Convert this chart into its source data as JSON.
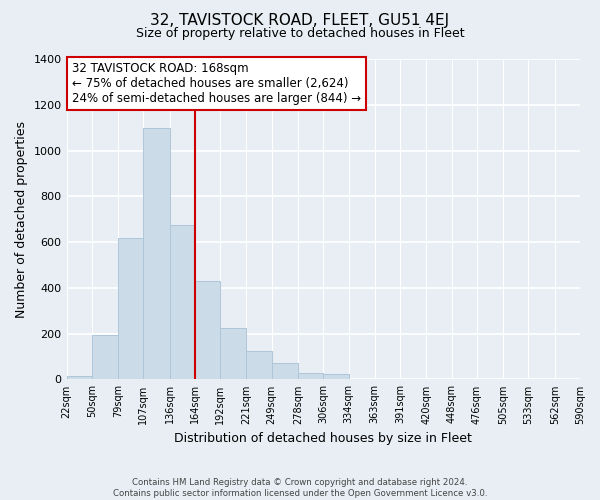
{
  "title": "32, TAVISTOCK ROAD, FLEET, GU51 4EJ",
  "subtitle": "Size of property relative to detached houses in Fleet",
  "xlabel": "Distribution of detached houses by size in Fleet",
  "ylabel": "Number of detached properties",
  "bar_color": "#ccdbe8",
  "bar_edge_color": "#aec6d8",
  "bins": [
    22,
    50,
    79,
    107,
    136,
    164,
    192,
    221,
    249,
    278,
    306,
    334,
    363,
    391,
    420,
    448,
    476,
    505,
    533,
    562,
    590
  ],
  "counts": [
    15,
    195,
    620,
    1100,
    675,
    430,
    225,
    125,
    70,
    30,
    25,
    0,
    0,
    0,
    0,
    0,
    0,
    0,
    0,
    0
  ],
  "tick_labels": [
    "22sqm",
    "50sqm",
    "79sqm",
    "107sqm",
    "136sqm",
    "164sqm",
    "192sqm",
    "221sqm",
    "249sqm",
    "278sqm",
    "306sqm",
    "334sqm",
    "363sqm",
    "391sqm",
    "420sqm",
    "448sqm",
    "476sqm",
    "505sqm",
    "533sqm",
    "562sqm",
    "590sqm"
  ],
  "vline_x": 164,
  "vline_color": "#cc0000",
  "annotation_title": "32 TAVISTOCK ROAD: 168sqm",
  "annotation_line1": "← 75% of detached houses are smaller (2,624)",
  "annotation_line2": "24% of semi-detached houses are larger (844) →",
  "annotation_box_color": "#ffffff",
  "annotation_box_edge": "#cc0000",
  "ylim": [
    0,
    1400
  ],
  "yticks": [
    0,
    200,
    400,
    600,
    800,
    1000,
    1200,
    1400
  ],
  "footer1": "Contains HM Land Registry data © Crown copyright and database right 2024.",
  "footer2": "Contains public sector information licensed under the Open Government Licence v3.0.",
  "bg_color": "#e8eef4",
  "plot_bg_color": "#e8eef4"
}
